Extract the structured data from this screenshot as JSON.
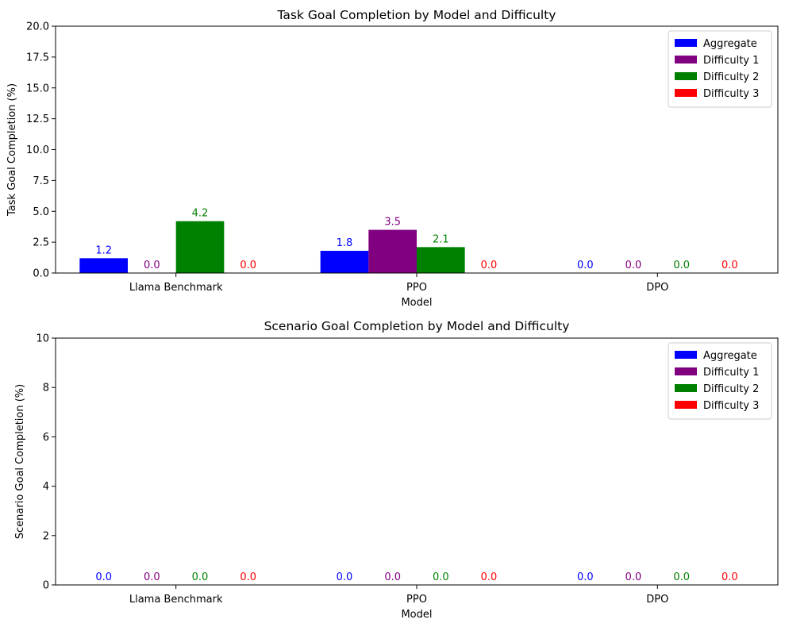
{
  "chart_data": [
    {
      "type": "bar",
      "title": "Task Goal Completion by Model and Difficulty",
      "xlabel": "Model",
      "ylabel": "Task Goal Completion (%)",
      "ylim": [
        0,
        20
      ],
      "yticks": [
        "0.0",
        "2.5",
        "5.0",
        "7.5",
        "10.0",
        "12.5",
        "15.0",
        "17.5",
        "20.0"
      ],
      "categories": [
        "Llama Benchmark",
        "PPO",
        "DPO"
      ],
      "legend_position": "top-right",
      "grid": false,
      "series": [
        {
          "name": "Aggregate",
          "color": "#0000ff",
          "values": [
            1.2,
            1.8,
            0.0
          ],
          "labels": [
            "1.2",
            "1.8",
            "0.0"
          ]
        },
        {
          "name": "Difficulty 1",
          "color": "#800080",
          "values": [
            0.0,
            3.5,
            0.0
          ],
          "labels": [
            "0.0",
            "3.5",
            "0.0"
          ]
        },
        {
          "name": "Difficulty 2",
          "color": "#008000",
          "values": [
            4.2,
            2.1,
            0.0
          ],
          "labels": [
            "4.2",
            "2.1",
            "0.0"
          ]
        },
        {
          "name": "Difficulty 3",
          "color": "#ff0000",
          "values": [
            0.0,
            0.0,
            0.0
          ],
          "labels": [
            "0.0",
            "0.0",
            "0.0"
          ]
        }
      ]
    },
    {
      "type": "bar",
      "title": "Scenario Goal Completion by Model and Difficulty",
      "xlabel": "Model",
      "ylabel": "Scenario Goal Completion (%)",
      "ylim": [
        0,
        10
      ],
      "yticks": [
        "0",
        "2",
        "4",
        "6",
        "8",
        "10"
      ],
      "categories": [
        "Llama Benchmark",
        "PPO",
        "DPO"
      ],
      "legend_position": "top-right",
      "grid": false,
      "series": [
        {
          "name": "Aggregate",
          "color": "#0000ff",
          "values": [
            0.0,
            0.0,
            0.0
          ],
          "labels": [
            "0.0",
            "0.0",
            "0.0"
          ]
        },
        {
          "name": "Difficulty 1",
          "color": "#800080",
          "values": [
            0.0,
            0.0,
            0.0
          ],
          "labels": [
            "0.0",
            "0.0",
            "0.0"
          ]
        },
        {
          "name": "Difficulty 2",
          "color": "#008000",
          "values": [
            0.0,
            0.0,
            0.0
          ],
          "labels": [
            "0.0",
            "0.0",
            "0.0"
          ]
        },
        {
          "name": "Difficulty 3",
          "color": "#ff0000",
          "values": [
            0.0,
            0.0,
            0.0
          ],
          "labels": [
            "0.0",
            "0.0",
            "0.0"
          ]
        }
      ]
    }
  ]
}
